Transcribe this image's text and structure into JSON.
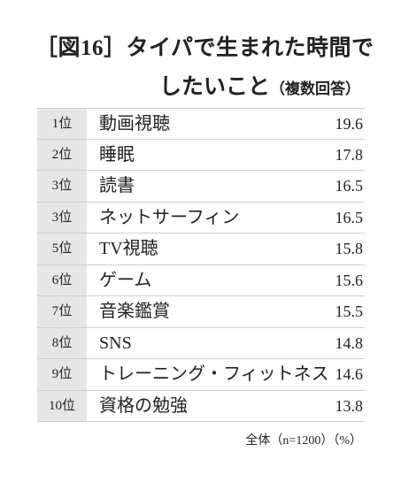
{
  "header": {
    "title": "［図16］タイパで生まれた時間で",
    "title_line2": "したいこと",
    "note": "（複数回答）"
  },
  "table": {
    "rows": [
      [
        "1位",
        "動画視聴",
        19.6
      ],
      [
        "2位",
        "睡眠",
        17.8
      ],
      [
        "3位",
        "読書",
        16.5
      ],
      [
        "3位",
        "ネットサーフィン",
        16.5
      ],
      [
        "5位",
        "TV視聴",
        15.8
      ],
      [
        "6位",
        "ゲーム",
        15.6
      ],
      [
        "7位",
        "音楽鑑賞",
        15.5
      ],
      [
        "8位",
        "SNS",
        14.8
      ],
      [
        "9位",
        "トレーニング・フィットネス",
        14.6
      ],
      [
        "10位",
        "資格の勉強",
        13.8
      ]
    ]
  },
  "footer": {
    "sample": "全体（n=1200）",
    "unit": "（%）"
  }
}
